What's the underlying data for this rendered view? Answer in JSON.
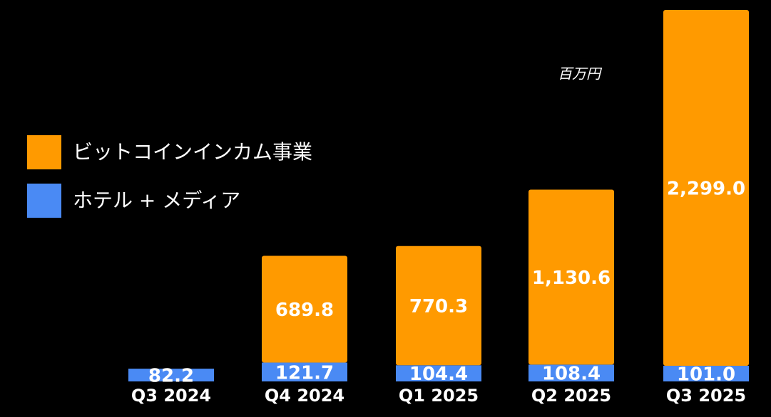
{
  "chart_data": {
    "type": "stacked_bar",
    "categories": [
      "Q3 2024",
      "Q4 2024",
      "Q1 2025",
      "Q2 2025",
      "Q3 2025"
    ],
    "series": [
      {
        "name": "ホテル + メディア",
        "color": "#4a8af4",
        "values": [
          82.2,
          121.7,
          104.4,
          108.4,
          101.0
        ],
        "value_labels": [
          "82.2",
          "121.7",
          "104.4",
          "108.4",
          "101.0"
        ]
      },
      {
        "name": "ビットコインインカム事業",
        "color": "#ff9a00",
        "values": [
          null,
          689.8,
          770.3,
          1130.6,
          2299.0
        ],
        "value_labels": [
          null,
          "689.8",
          "770.3",
          "1,130.6",
          "2,299.0"
        ]
      }
    ],
    "annotation": "百万円"
  }
}
